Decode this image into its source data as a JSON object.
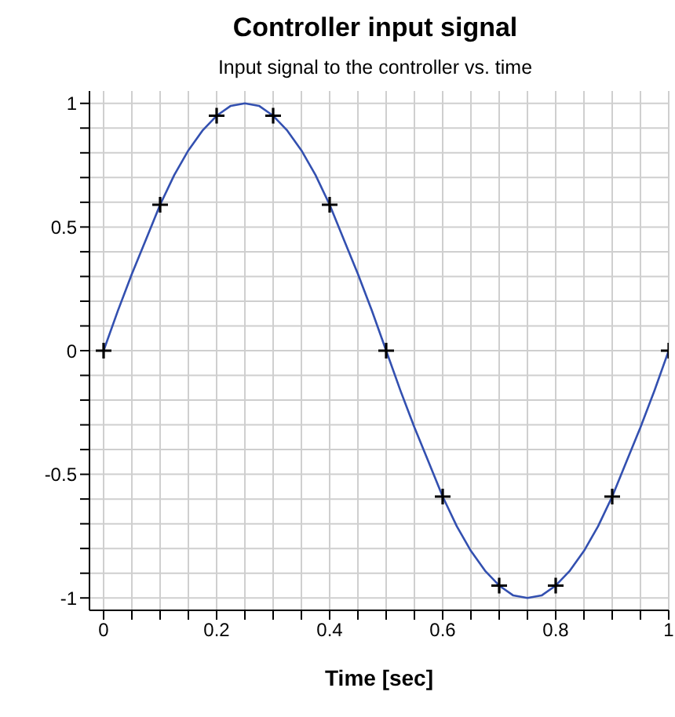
{
  "chart_data": {
    "type": "line",
    "title": "Controller input signal",
    "subtitle": "Input signal to the controller vs. time",
    "xlabel": "Time [sec]",
    "xlim": [
      -0.025,
      1
    ],
    "ylim": [
      -1.05,
      1.05
    ],
    "xticks": [
      0,
      {
        "value": 0.05,
        "label": null
      },
      {
        "value": 0.1,
        "label": null
      },
      {
        "value": 0.15,
        "label": null
      },
      0.2,
      {
        "value": 0.25,
        "label": null
      },
      {
        "value": 0.3,
        "label": null
      },
      {
        "value": 0.35,
        "label": null
      },
      0.4,
      {
        "value": 0.45,
        "label": null
      },
      {
        "value": 0.5,
        "label": null
      },
      {
        "value": 0.55,
        "label": null
      },
      0.6,
      {
        "value": 0.65,
        "label": null
      },
      {
        "value": 0.7,
        "label": null
      },
      {
        "value": 0.75,
        "label": null
      },
      0.8,
      {
        "value": 0.85,
        "label": null
      },
      {
        "value": 0.9,
        "label": null
      },
      {
        "value": 0.95,
        "label": null
      },
      1
    ],
    "yticks": [
      -1,
      {
        "value": -0.9,
        "label": null
      },
      {
        "value": -0.8,
        "label": null
      },
      {
        "value": -0.7,
        "label": null
      },
      {
        "value": -0.6,
        "label": null
      },
      -0.5,
      {
        "value": -0.4,
        "label": null
      },
      {
        "value": -0.3,
        "label": null
      },
      {
        "value": -0.2,
        "label": null
      },
      {
        "value": -0.1,
        "label": null
      },
      0,
      {
        "value": 0.1,
        "label": null
      },
      {
        "value": 0.2,
        "label": null
      },
      {
        "value": 0.3,
        "label": null
      },
      {
        "value": 0.4,
        "label": null
      },
      0.5,
      {
        "value": 0.6,
        "label": null
      },
      {
        "value": 0.7,
        "label": null
      },
      {
        "value": 0.8,
        "label": null
      },
      {
        "value": 0.9,
        "label": null
      },
      1
    ],
    "grid": true,
    "series": [
      {
        "color": "#3350b0",
        "marker": "none",
        "line_style": "solid",
        "x": [
          0,
          0.025,
          0.05,
          0.075,
          0.1,
          0.125,
          0.15,
          0.175,
          0.2,
          0.225,
          0.25,
          0.275,
          0.3,
          0.325,
          0.35,
          0.375,
          0.4,
          0.425,
          0.45,
          0.475,
          0.5,
          0.525,
          0.55,
          0.575,
          0.6,
          0.625,
          0.65,
          0.675,
          0.7,
          0.725,
          0.75,
          0.775,
          0.8,
          0.825,
          0.85,
          0.875,
          0.9,
          0.925,
          0.95,
          0.975,
          1
        ],
        "values": [
          0,
          0.16,
          0.31,
          0.45,
          0.59,
          0.71,
          0.81,
          0.89,
          0.95,
          0.99,
          1,
          0.99,
          0.95,
          0.89,
          0.81,
          0.71,
          0.59,
          0.45,
          0.31,
          0.16,
          0,
          -0.16,
          -0.31,
          -0.45,
          -0.59,
          -0.71,
          -0.81,
          -0.89,
          -0.95,
          -0.99,
          -1,
          -0.99,
          -0.95,
          -0.89,
          -0.81,
          -0.71,
          -0.59,
          -0.45,
          -0.31,
          -0.16,
          0
        ]
      },
      {
        "type": "scatter",
        "color": "#000000",
        "marker": "cross",
        "x": [
          0,
          0.1,
          0.2,
          0.3,
          0.4,
          0.5,
          0.6,
          0.7,
          0.8,
          0.9,
          1
        ],
        "values": [
          0,
          0.59,
          0.95,
          0.95,
          0.59,
          0,
          -0.59,
          -0.95,
          -0.95,
          -0.59,
          0
        ]
      }
    ]
  }
}
